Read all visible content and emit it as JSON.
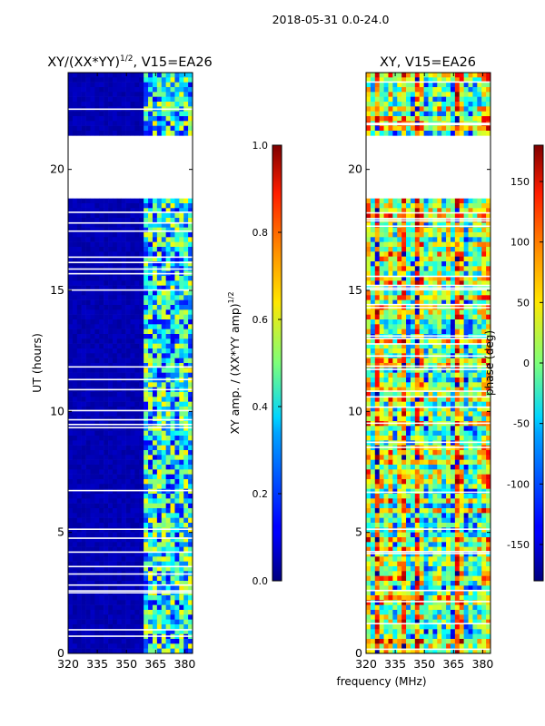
{
  "suptitle": "2018-05-31 0.0-24.0",
  "chart_data": [
    {
      "type": "heatmap",
      "title_base": "XY/(XX*YY)",
      "title_exp": "1/2",
      "title_tail": ", V15=EA26",
      "xlabel": "",
      "ylabel": "UT (hours)",
      "xlim": [
        320,
        384
      ],
      "ylim": [
        0,
        24
      ],
      "xticks": [
        "320",
        "335",
        "350",
        "365",
        "380"
      ],
      "yticks": [
        "0",
        "5",
        "10",
        "15",
        "20"
      ],
      "blank_band_hours": [
        19.0,
        21.3
      ],
      "colorbar": {
        "label_base": "XY amp. / (XX*YY amp)",
        "label_exp": "1/2",
        "range": [
          0.0,
          1.0
        ],
        "ticks": [
          "0.0",
          "0.2",
          "0.4",
          "0.6",
          "0.8",
          "1.0"
        ],
        "colormap": "jet"
      }
    },
    {
      "type": "heatmap",
      "title": "XY, V15=EA26",
      "xlabel": "frequency (MHz)",
      "ylabel": "",
      "xlim": [
        320,
        384
      ],
      "ylim": [
        0,
        24
      ],
      "xticks": [
        "320",
        "335",
        "350",
        "365",
        "380"
      ],
      "yticks": [
        "0",
        "5",
        "10",
        "15",
        "20"
      ],
      "blank_band_hours": [
        19.0,
        21.3
      ],
      "colorbar": {
        "label": "phase (deg)",
        "range": [
          -180,
          180
        ],
        "ticks": [
          "-150",
          "-100",
          "-50",
          "0",
          "50",
          "100",
          "150"
        ],
        "colormap": "jet"
      }
    }
  ]
}
